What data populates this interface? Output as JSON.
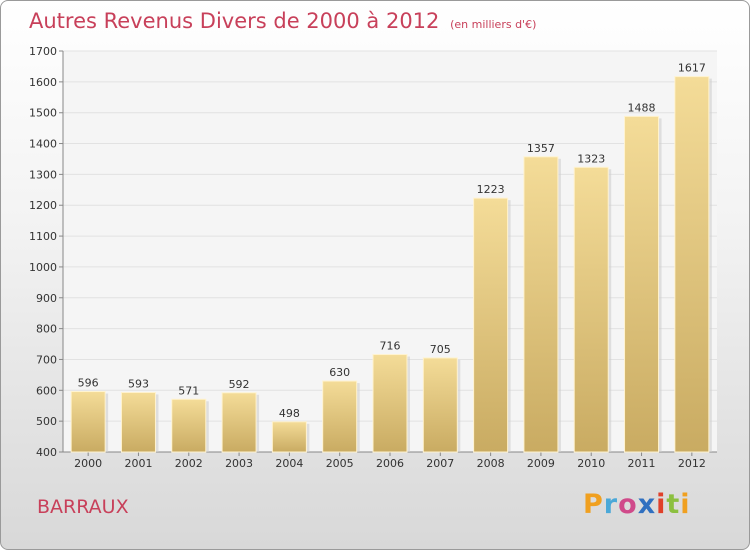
{
  "chart_data": {
    "type": "bar",
    "title": "Autres Revenus Divers de 2000 à 2012",
    "subtitle": "(en milliers d'€)",
    "categories": [
      "2000",
      "2001",
      "2002",
      "2003",
      "2004",
      "2005",
      "2006",
      "2007",
      "2008",
      "2009",
      "2010",
      "2011",
      "2012"
    ],
    "values": [
      596,
      593,
      571,
      592,
      498,
      630,
      716,
      705,
      1223,
      1357,
      1323,
      1488,
      1617
    ],
    "ylim": [
      400,
      1700
    ],
    "yticks": [
      400,
      500,
      600,
      700,
      800,
      900,
      1000,
      1100,
      1200,
      1300,
      1400,
      1500,
      1600,
      1700
    ],
    "grid": true,
    "bar_color": "#e8c878"
  },
  "footer": {
    "location": "BARRAUX",
    "logo_letters": [
      "P",
      "r",
      "o",
      "x",
      "i",
      "t",
      "i"
    ],
    "logo_colors": [
      "#f0a020",
      "#4aa8d8",
      "#d04a8a",
      "#3070c0",
      "#e0402a",
      "#8cc040",
      "#f0a020"
    ]
  }
}
